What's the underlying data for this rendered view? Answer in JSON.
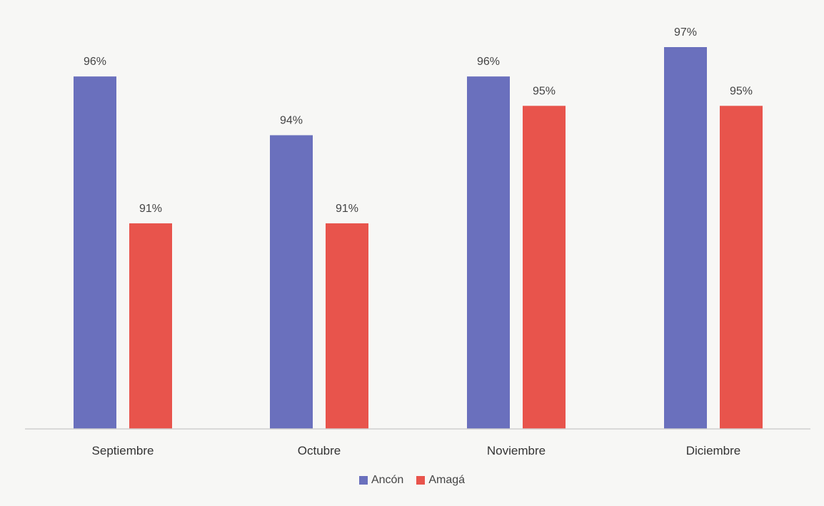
{
  "chart_data": {
    "type": "bar",
    "categories": [
      "Septiembre",
      "Octubre",
      "Noviembre",
      "Diciembre"
    ],
    "series": [
      {
        "name": "Ancón",
        "values": [
          96,
          94,
          96,
          97
        ],
        "labels": [
          "96%",
          "94%",
          "96%",
          "97%"
        ],
        "color": "#6a70bd"
      },
      {
        "name": "Amagá",
        "values": [
          91,
          91,
          95,
          95
        ],
        "labels": [
          "91%",
          "91%",
          "95%",
          "95%"
        ],
        "color": "#e8544c"
      }
    ],
    "title": "",
    "xlabel": "",
    "ylabel": "",
    "ylim": [
      84,
      98
    ],
    "grid": false,
    "legend_position": "bottom"
  }
}
